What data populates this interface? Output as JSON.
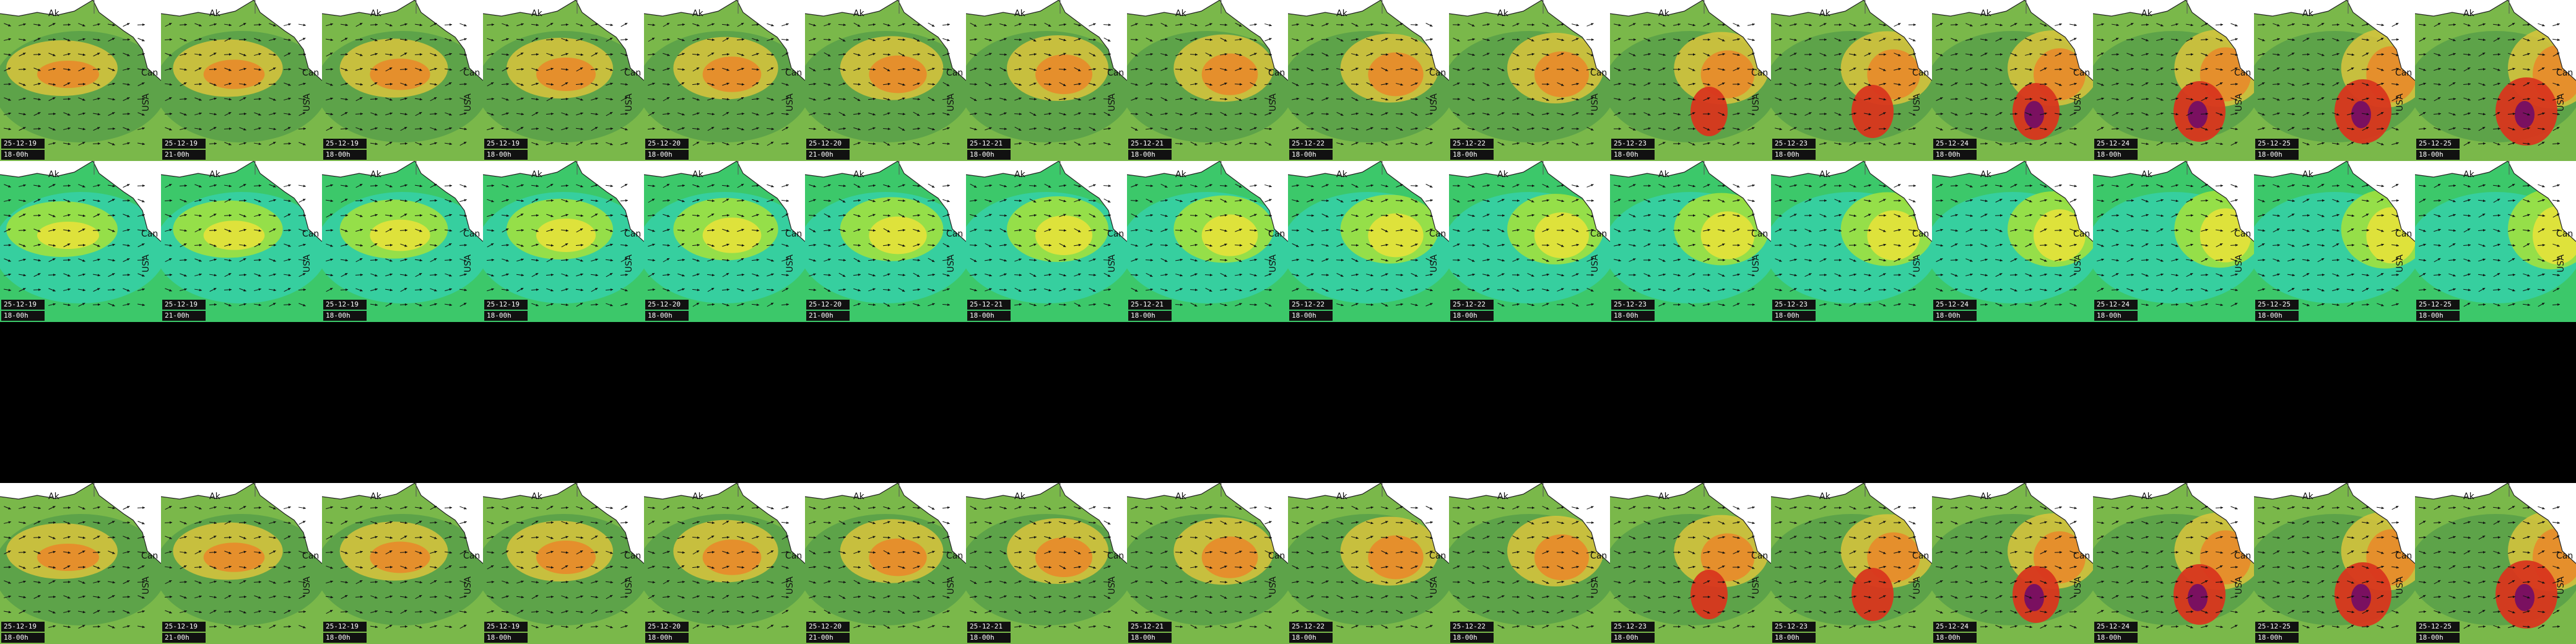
{
  "labels": {
    "alaska": "Ak",
    "canada": "Can",
    "usa": "USA"
  },
  "frames": [
    {
      "date": "25-12-19",
      "run": "18-00h"
    },
    {
      "date": "25-12-19",
      "run": "21-00h"
    },
    {
      "date": "25-12-19",
      "run": "18-00h"
    },
    {
      "date": "25-12-19",
      "run": "18-00h"
    },
    {
      "date": "25-12-20",
      "run": "18-00h"
    },
    {
      "date": "25-12-20",
      "run": "21-00h"
    },
    {
      "date": "25-12-21",
      "run": "18-00h"
    },
    {
      "date": "25-12-21",
      "run": "18-00h"
    },
    {
      "date": "25-12-22",
      "run": "18-00h"
    },
    {
      "date": "25-12-22",
      "run": "18-00h"
    },
    {
      "date": "25-12-23",
      "run": "18-00h"
    },
    {
      "date": "25-12-23",
      "run": "18-00h"
    },
    {
      "date": "25-12-24",
      "run": "18-00h"
    },
    {
      "date": "25-12-24",
      "run": "18-00h"
    },
    {
      "date": "25-12-25",
      "run": "18-00h"
    },
    {
      "date": "25-12-25",
      "run": "18-00h"
    }
  ],
  "rows": [
    {
      "name": "wave-height",
      "palette": [
        "#3a8a4a",
        "#7ab84a",
        "#d9c43c",
        "#e88a2a",
        "#d8361e"
      ]
    },
    {
      "name": "wave-period",
      "palette": [
        "#2fd6e0",
        "#3cc86a",
        "#a6e23a",
        "#e6e23a",
        "#e0a030"
      ]
    },
    {
      "name": "blank"
    },
    {
      "name": "wave-height-alt",
      "palette": [
        "#3a8a4a",
        "#7ab84a",
        "#d9c43c",
        "#e88a2a",
        "#d8361e"
      ]
    }
  ]
}
